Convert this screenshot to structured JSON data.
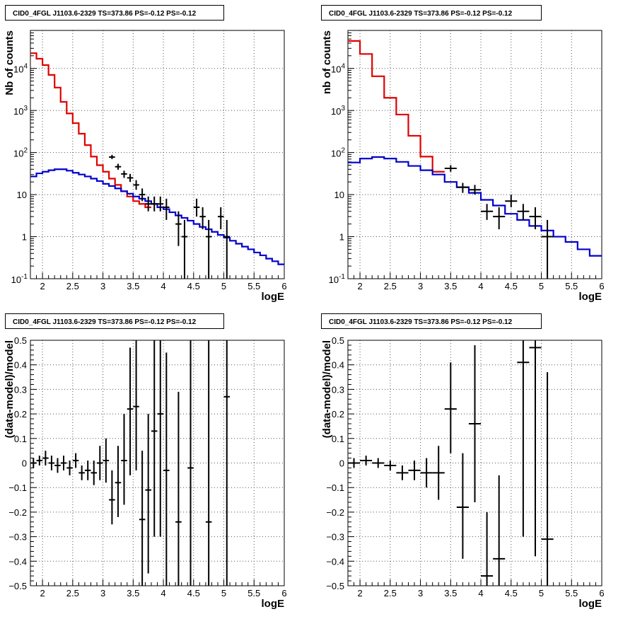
{
  "colors": {
    "data": "#000000",
    "total_model": "#e00000",
    "component_model": "#0000cc",
    "grid": "#555555"
  },
  "chart_data": [
    {
      "id": "top-left",
      "type": "line",
      "title": "CID0_4FGL J1103.6-2329 TS=373.86 PS=-0.12 PS=-0.12",
      "xlabel": "logE",
      "ylabel": "Nb of counts",
      "xlim": [
        1.8,
        6.0
      ],
      "ylim": [
        0.1,
        80000
      ],
      "yscale": "log",
      "grid": true,
      "xticks": [
        "2",
        "2.5",
        "3",
        "3.5",
        "4",
        "4.5",
        "5",
        "5.5",
        "6"
      ],
      "yticks": [
        {
          "v": 0.1,
          "label": "10^-1"
        },
        {
          "v": 1,
          "label": "1"
        },
        {
          "v": 10,
          "label": "10"
        },
        {
          "v": 100,
          "label": "10^2"
        },
        {
          "v": 1000,
          "label": "10^3"
        },
        {
          "v": 10000,
          "label": "10^4"
        }
      ],
      "series": [
        {
          "kind": "step",
          "color": "total_model",
          "bin_width": 0.1,
          "x_start": 1.8,
          "values": [
            23000,
            17000,
            12000,
            7000,
            3500,
            1600,
            850,
            500,
            280,
            150,
            80,
            50,
            35,
            24,
            17,
            12,
            9,
            7,
            6,
            5
          ]
        },
        {
          "kind": "step",
          "color": "component_model",
          "bin_width": 0.1,
          "x_start": 1.8,
          "values": [
            27,
            32,
            35,
            38,
            40,
            40,
            37,
            33,
            30,
            27,
            24,
            21,
            18,
            16,
            14,
            12,
            10.5,
            9,
            8,
            7,
            6,
            5,
            4.5,
            3.8,
            3.2,
            2.8,
            2.4,
            2,
            1.7,
            1.5,
            1.3,
            1.1,
            0.95,
            0.8,
            0.68,
            0.58,
            0.5,
            0.42,
            0.36,
            0.3,
            0.26,
            0.22
          ]
        },
        {
          "kind": "errorbar",
          "color": "data",
          "xerr": 0.05,
          "points": [
            {
              "x": 3.15,
              "y": 78,
              "lo": 70,
              "hi": 88
            },
            {
              "x": 3.25,
              "y": 46,
              "lo": 39,
              "hi": 54
            },
            {
              "x": 3.35,
              "y": 31,
              "lo": 25,
              "hi": 37
            },
            {
              "x": 3.45,
              "y": 25,
              "lo": 20,
              "hi": 31
            },
            {
              "x": 3.55,
              "y": 17,
              "lo": 13,
              "hi": 22
            },
            {
              "x": 3.65,
              "y": 10,
              "lo": 7,
              "hi": 14
            },
            {
              "x": 3.75,
              "y": 6,
              "lo": 4,
              "hi": 9
            },
            {
              "x": 3.85,
              "y": 6,
              "lo": 4,
              "hi": 9
            },
            {
              "x": 3.95,
              "y": 6,
              "lo": 4,
              "hi": 9
            },
            {
              "x": 4.05,
              "y": 5,
              "lo": 2.5,
              "hi": 8
            },
            {
              "x": 4.25,
              "y": 2,
              "lo": 0.6,
              "hi": 4
            },
            {
              "x": 4.35,
              "y": 1,
              "lo": 0.1,
              "hi": 2.5
            },
            {
              "x": 4.55,
              "y": 5,
              "lo": 3,
              "hi": 8
            },
            {
              "x": 4.65,
              "y": 3,
              "lo": 1.5,
              "hi": 5
            },
            {
              "x": 4.75,
              "y": 1,
              "lo": 0.1,
              "hi": 2.5
            },
            {
              "x": 4.95,
              "y": 3,
              "lo": 1.5,
              "hi": 5
            },
            {
              "x": 5.05,
              "y": 1,
              "lo": 0.1,
              "hi": 2.5
            }
          ]
        }
      ]
    },
    {
      "id": "top-right",
      "type": "line",
      "title": "CID0_4FGL J1103.6-2329 TS=373.86 PS=-0.12 PS=-0.12",
      "xlabel": "logE",
      "ylabel": "nb of counts",
      "xlim": [
        1.8,
        6.0
      ],
      "ylim": [
        0.1,
        80000
      ],
      "yscale": "log",
      "grid": true,
      "xticks": [
        "2",
        "2.5",
        "3",
        "3.5",
        "4",
        "4.5",
        "5",
        "5.5",
        "6"
      ],
      "yticks": [
        {
          "v": 0.1,
          "label": "10^-1"
        },
        {
          "v": 1,
          "label": "1"
        },
        {
          "v": 10,
          "label": "10"
        },
        {
          "v": 100,
          "label": "10^2"
        },
        {
          "v": 1000,
          "label": "10^3"
        },
        {
          "v": 10000,
          "label": "10^4"
        }
      ],
      "series": [
        {
          "kind": "step",
          "color": "total_model",
          "bin_width": 0.2,
          "x_start": 1.8,
          "values": [
            45000,
            22000,
            6500,
            2000,
            800,
            250,
            80,
            35
          ]
        },
        {
          "kind": "step",
          "color": "component_model",
          "bin_width": 0.2,
          "x_start": 1.8,
          "values": [
            58,
            72,
            78,
            72,
            60,
            48,
            38,
            30,
            20,
            15,
            11,
            7.5,
            5.5,
            3.5,
            2.5,
            1.8,
            1.4,
            1.0,
            0.75,
            0.5,
            0.35
          ]
        },
        {
          "kind": "errorbar",
          "color": "data",
          "xerr": 0.1,
          "points": [
            {
              "x": 3.5,
              "y": 42,
              "lo": 35,
              "hi": 50
            },
            {
              "x": 3.7,
              "y": 15,
              "lo": 11,
              "hi": 19
            },
            {
              "x": 3.9,
              "y": 13,
              "lo": 10,
              "hi": 17
            },
            {
              "x": 4.1,
              "y": 4,
              "lo": 2.5,
              "hi": 6
            },
            {
              "x": 4.3,
              "y": 3,
              "lo": 1.5,
              "hi": 5
            },
            {
              "x": 4.5,
              "y": 7,
              "lo": 5,
              "hi": 10
            },
            {
              "x": 4.7,
              "y": 4,
              "lo": 2.5,
              "hi": 6
            },
            {
              "x": 4.9,
              "y": 3,
              "lo": 1.5,
              "hi": 5
            },
            {
              "x": 5.1,
              "y": 1,
              "lo": 0.1,
              "hi": 2.5
            }
          ]
        }
      ]
    },
    {
      "id": "bottom-left",
      "type": "scatter",
      "title": "CID0_4FGL J1103.6-2329 TS=373.86 PS=-0.12 PS=-0.12",
      "xlabel": "logE",
      "ylabel": "(data-model)/model",
      "xlim": [
        1.8,
        6.0
      ],
      "ylim": [
        -0.5,
        0.5
      ],
      "yscale": "linear",
      "grid": true,
      "xticks": [
        "2",
        "2.5",
        "3",
        "3.5",
        "4",
        "4.5",
        "5",
        "5.5",
        "6"
      ],
      "yticks": [
        {
          "v": -0.5,
          "label": "−0.5"
        },
        {
          "v": -0.4,
          "label": "−0.4"
        },
        {
          "v": -0.3,
          "label": "−0.3"
        },
        {
          "v": -0.2,
          "label": "−0.2"
        },
        {
          "v": -0.1,
          "label": "−0.1"
        },
        {
          "v": 0,
          "label": "0"
        },
        {
          "v": 0.1,
          "label": "0.1"
        },
        {
          "v": 0.2,
          "label": "0.2"
        },
        {
          "v": 0.3,
          "label": "0.3"
        },
        {
          "v": 0.4,
          "label": "0.4"
        },
        {
          "v": 0.5,
          "label": "0.5"
        }
      ],
      "series": [
        {
          "kind": "errorbar",
          "color": "data",
          "xerr": 0.05,
          "points": [
            {
              "x": 1.85,
              "y": 0.0,
              "lo": -0.02,
              "hi": 0.02
            },
            {
              "x": 1.95,
              "y": 0.01,
              "lo": -0.01,
              "hi": 0.03
            },
            {
              "x": 2.05,
              "y": 0.02,
              "lo": -0.01,
              "hi": 0.05
            },
            {
              "x": 2.15,
              "y": 0.0,
              "lo": -0.03,
              "hi": 0.03
            },
            {
              "x": 2.25,
              "y": -0.01,
              "lo": -0.04,
              "hi": 0.02
            },
            {
              "x": 2.35,
              "y": 0.0,
              "lo": -0.03,
              "hi": 0.03
            },
            {
              "x": 2.45,
              "y": -0.02,
              "lo": -0.05,
              "hi": 0.01
            },
            {
              "x": 2.55,
              "y": 0.01,
              "lo": -0.02,
              "hi": 0.04
            },
            {
              "x": 2.65,
              "y": -0.04,
              "lo": -0.07,
              "hi": -0.01
            },
            {
              "x": 2.75,
              "y": -0.03,
              "lo": -0.07,
              "hi": 0.01
            },
            {
              "x": 2.85,
              "y": -0.04,
              "lo": -0.09,
              "hi": 0.01
            },
            {
              "x": 2.95,
              "y": 0.0,
              "lo": -0.07,
              "hi": 0.07
            },
            {
              "x": 3.05,
              "y": 0.01,
              "lo": -0.08,
              "hi": 0.1
            },
            {
              "x": 3.15,
              "y": -0.15,
              "lo": -0.25,
              "hi": -0.03
            },
            {
              "x": 3.25,
              "y": -0.08,
              "lo": -0.22,
              "hi": 0.07
            },
            {
              "x": 3.35,
              "y": 0.01,
              "lo": -0.17,
              "hi": 0.2
            },
            {
              "x": 3.45,
              "y": 0.22,
              "lo": -0.05,
              "hi": 0.47
            },
            {
              "x": 3.55,
              "y": 0.23,
              "lo": -0.03,
              "hi": 0.5
            },
            {
              "x": 3.65,
              "y": -0.23,
              "lo": -0.5,
              "hi": 0.05
            },
            {
              "x": 3.75,
              "y": -0.11,
              "lo": -0.45,
              "hi": 0.2
            },
            {
              "x": 3.85,
              "y": 0.13,
              "lo": -0.3,
              "hi": 0.5
            },
            {
              "x": 3.95,
              "y": 0.2,
              "lo": -0.3,
              "hi": 0.5
            },
            {
              "x": 4.05,
              "y": -0.03,
              "lo": -0.5,
              "hi": 0.45
            },
            {
              "x": 4.25,
              "y": -0.24,
              "lo": -0.5,
              "hi": 0.29
            },
            {
              "x": 4.45,
              "y": -0.02,
              "lo": -0.5,
              "hi": 0.5
            },
            {
              "x": 4.75,
              "y": -0.24,
              "lo": -0.5,
              "hi": 0.5
            },
            {
              "x": 5.05,
              "y": 0.27,
              "lo": -0.5,
              "hi": 0.5
            }
          ]
        }
      ]
    },
    {
      "id": "bottom-right",
      "type": "scatter",
      "title": "CID0_4FGL J1103.6-2329 TS=373.86 PS=-0.12 PS=-0.12",
      "xlabel": "logE",
      "ylabel": "(data-model)/model",
      "xlim": [
        1.8,
        6.0
      ],
      "ylim": [
        -0.5,
        0.5
      ],
      "yscale": "linear",
      "grid": true,
      "xticks": [
        "2",
        "2.5",
        "3",
        "3.5",
        "4",
        "4.5",
        "5",
        "5.5",
        "6"
      ],
      "yticks": [
        {
          "v": -0.5,
          "label": "−0.5"
        },
        {
          "v": -0.4,
          "label": "−0.4"
        },
        {
          "v": -0.3,
          "label": "−0.3"
        },
        {
          "v": -0.2,
          "label": "−0.2"
        },
        {
          "v": -0.1,
          "label": "−0.1"
        },
        {
          "v": 0,
          "label": "0"
        },
        {
          "v": 0.1,
          "label": "0.1"
        },
        {
          "v": 0.2,
          "label": "0.2"
        },
        {
          "v": 0.3,
          "label": "0.3"
        },
        {
          "v": 0.4,
          "label": "0.4"
        },
        {
          "v": 0.5,
          "label": "0.5"
        }
      ],
      "series": [
        {
          "kind": "errorbar",
          "color": "data",
          "xerr": 0.1,
          "points": [
            {
              "x": 1.9,
              "y": 0.0,
              "lo": -0.02,
              "hi": 0.02
            },
            {
              "x": 2.1,
              "y": 0.01,
              "lo": -0.01,
              "hi": 0.03
            },
            {
              "x": 2.3,
              "y": 0.0,
              "lo": -0.02,
              "hi": 0.02
            },
            {
              "x": 2.5,
              "y": -0.01,
              "lo": -0.03,
              "hi": 0.01
            },
            {
              "x": 2.7,
              "y": -0.04,
              "lo": -0.07,
              "hi": -0.01
            },
            {
              "x": 2.9,
              "y": -0.03,
              "lo": -0.07,
              "hi": 0.01
            },
            {
              "x": 3.1,
              "y": -0.04,
              "lo": -0.1,
              "hi": 0.02
            },
            {
              "x": 3.3,
              "y": -0.04,
              "lo": -0.15,
              "hi": 0.07
            },
            {
              "x": 3.5,
              "y": 0.22,
              "lo": 0.04,
              "hi": 0.41
            },
            {
              "x": 3.7,
              "y": -0.18,
              "lo": -0.39,
              "hi": 0.04
            },
            {
              "x": 3.9,
              "y": 0.16,
              "lo": -0.16,
              "hi": 0.48
            },
            {
              "x": 4.1,
              "y": -0.46,
              "lo": -0.5,
              "hi": -0.2
            },
            {
              "x": 4.3,
              "y": -0.39,
              "lo": -0.5,
              "hi": -0.05
            },
            {
              "x": 4.7,
              "y": 0.41,
              "lo": -0.3,
              "hi": 0.5
            },
            {
              "x": 4.9,
              "y": 0.47,
              "lo": -0.38,
              "hi": 0.5
            },
            {
              "x": 5.1,
              "y": -0.31,
              "lo": -0.5,
              "hi": 0.37
            }
          ]
        }
      ]
    }
  ]
}
